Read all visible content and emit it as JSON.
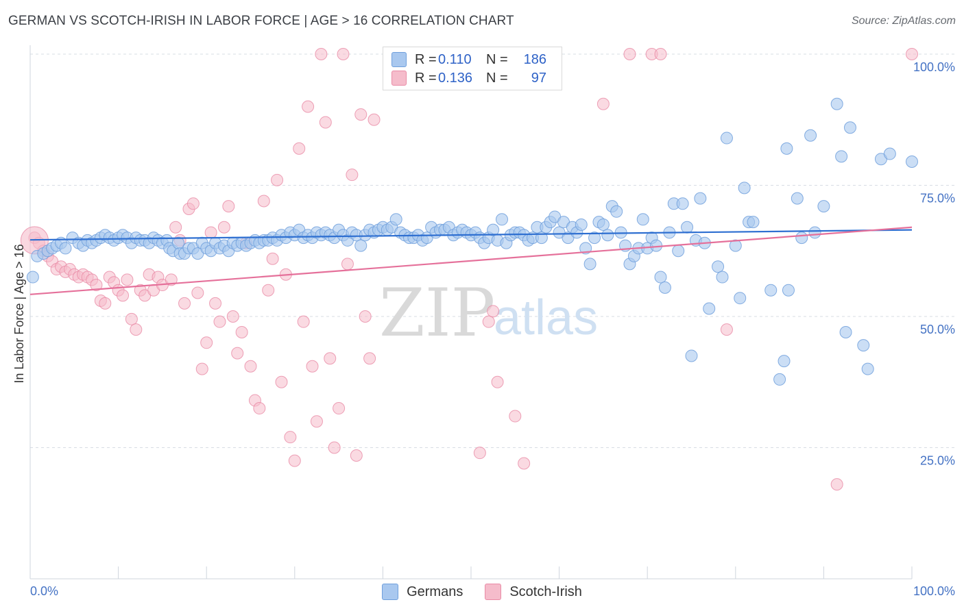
{
  "title": "GERMAN VS SCOTCH-IRISH IN LABOR FORCE | AGE > 16 CORRELATION CHART",
  "source": "Source: ZipAtlas.com",
  "watermark": {
    "part1": "ZIP",
    "part2": "atlas"
  },
  "colors": {
    "german_fill": "#a9c8ef",
    "german_stroke": "#6f9fdc",
    "german_line": "#2e6fd1",
    "scotch_fill": "#f5bccb",
    "scotch_stroke": "#e98aa5",
    "scotch_line": "#e5709a",
    "grid": "#d7dce3",
    "axis_label": "#4472c4"
  },
  "legend": {
    "german": {
      "r_label": "R =",
      "r_value": "0.110",
      "n_label": "N =",
      "n_value": "186"
    },
    "scotch": {
      "r_label": "R =",
      "r_value": "0.136",
      "n_label": "N =",
      "n_value": "97"
    }
  },
  "bottom_legend": {
    "german": "Germans",
    "scotch": "Scotch-Irish"
  },
  "chart_data": {
    "type": "scatter",
    "title": "GERMAN VS SCOTCH-IRISH IN LABOR FORCE | AGE > 16 CORRELATION CHART",
    "xlabel": "",
    "ylabel": "In Labor Force | Age > 16",
    "xlim": [
      0,
      100
    ],
    "ylim": [
      0,
      100
    ],
    "x_ticks_labeled": [
      "0.0%",
      "100.0%"
    ],
    "y_ticks": [
      25,
      50,
      75,
      100
    ],
    "y_tick_labels": [
      "25.0%",
      "50.0%",
      "75.0%",
      "100.0%"
    ],
    "grid": "horizontal dashed",
    "series": [
      {
        "name": "Germans",
        "trend": {
          "x": [
            0,
            100
          ],
          "y": [
            64.6,
            66.5
          ]
        },
        "points": [
          [
            0.3,
            57.5
          ],
          [
            0.8,
            61.5
          ],
          [
            1.5,
            62
          ],
          [
            2,
            62.5
          ],
          [
            2.5,
            63
          ],
          [
            3,
            63.5
          ],
          [
            3.5,
            64
          ],
          [
            4,
            63
          ],
          [
            4.8,
            65
          ],
          [
            5.5,
            64
          ],
          [
            6,
            63.5
          ],
          [
            6.5,
            64.5
          ],
          [
            7,
            64
          ],
          [
            7.5,
            64.5
          ],
          [
            8,
            65
          ],
          [
            8.5,
            65.5
          ],
          [
            9,
            65
          ],
          [
            9.5,
            64.5
          ],
          [
            10,
            65
          ],
          [
            10.5,
            65.5
          ],
          [
            11,
            65
          ],
          [
            11.5,
            64
          ],
          [
            12,
            65
          ],
          [
            12.5,
            64.5
          ],
          [
            13,
            64.5
          ],
          [
            13.5,
            64
          ],
          [
            14,
            65
          ],
          [
            14.5,
            64.5
          ],
          [
            15,
            64
          ],
          [
            15.5,
            64.5
          ],
          [
            15.8,
            63
          ],
          [
            16.2,
            62.5
          ],
          [
            16.8,
            64
          ],
          [
            17,
            62
          ],
          [
            17.5,
            62
          ],
          [
            18,
            63
          ],
          [
            18.5,
            63
          ],
          [
            19,
            62
          ],
          [
            19.5,
            64
          ],
          [
            20,
            63
          ],
          [
            20.5,
            62.5
          ],
          [
            21,
            64
          ],
          [
            21.5,
            63
          ],
          [
            22,
            63.5
          ],
          [
            22.5,
            62.5
          ],
          [
            23,
            64
          ],
          [
            23.5,
            63.5
          ],
          [
            24,
            64
          ],
          [
            24.5,
            63.5
          ],
          [
            25,
            64
          ],
          [
            25.5,
            64.5
          ],
          [
            26,
            64
          ],
          [
            26.5,
            64.5
          ],
          [
            27,
            64.5
          ],
          [
            27.5,
            65
          ],
          [
            28,
            64.5
          ],
          [
            28.5,
            65.5
          ],
          [
            29,
            65
          ],
          [
            29.5,
            66
          ],
          [
            30,
            65.5
          ],
          [
            30.5,
            66.5
          ],
          [
            31,
            65
          ],
          [
            31.5,
            65.5
          ],
          [
            32,
            65
          ],
          [
            32.5,
            66
          ],
          [
            33,
            65.5
          ],
          [
            33.5,
            66
          ],
          [
            34,
            65.5
          ],
          [
            34.5,
            65
          ],
          [
            35,
            66.5
          ],
          [
            35.5,
            65.5
          ],
          [
            36,
            64.5
          ],
          [
            36.5,
            66
          ],
          [
            37,
            65.5
          ],
          [
            37.5,
            63.5
          ],
          [
            38,
            65.5
          ],
          [
            38.5,
            66.5
          ],
          [
            39,
            66
          ],
          [
            39.5,
            66.5
          ],
          [
            40,
            67
          ],
          [
            40.5,
            66.5
          ],
          [
            41,
            67
          ],
          [
            41.5,
            68.5
          ],
          [
            42,
            66
          ],
          [
            42.5,
            65.5
          ],
          [
            43,
            65
          ],
          [
            43.5,
            65
          ],
          [
            44,
            65.5
          ],
          [
            44.5,
            64.5
          ],
          [
            45,
            65
          ],
          [
            45.5,
            67
          ],
          [
            46,
            66
          ],
          [
            46.5,
            66.5
          ],
          [
            47,
            66.5
          ],
          [
            47.5,
            67
          ],
          [
            48,
            65.5
          ],
          [
            48.5,
            66
          ],
          [
            49,
            66.5
          ],
          [
            49.5,
            66
          ],
          [
            50,
            65.5
          ],
          [
            50.5,
            66
          ],
          [
            51,
            65
          ],
          [
            51.5,
            64
          ],
          [
            52,
            65
          ],
          [
            52.5,
            66.5
          ],
          [
            53,
            64.5
          ],
          [
            53.5,
            68.5
          ],
          [
            54,
            64
          ],
          [
            54.5,
            65.5
          ],
          [
            55,
            66
          ],
          [
            55.5,
            66
          ],
          [
            56,
            65.5
          ],
          [
            56.5,
            64.5
          ],
          [
            57,
            65
          ],
          [
            57.5,
            67
          ],
          [
            58,
            65
          ],
          [
            58.5,
            67
          ],
          [
            59,
            68
          ],
          [
            59.5,
            69
          ],
          [
            60,
            66
          ],
          [
            60.5,
            68
          ],
          [
            61,
            65
          ],
          [
            61.5,
            67
          ],
          [
            62,
            66
          ],
          [
            62.5,
            67.5
          ],
          [
            63,
            63
          ],
          [
            63.5,
            60
          ],
          [
            64,
            65
          ],
          [
            64.5,
            68
          ],
          [
            65,
            67.5
          ],
          [
            65.5,
            65.5
          ],
          [
            66,
            71
          ],
          [
            66.5,
            70
          ],
          [
            67,
            66
          ],
          [
            67.5,
            63.5
          ],
          [
            68,
            60
          ],
          [
            68.5,
            61.5
          ],
          [
            69,
            63
          ],
          [
            69.5,
            68.5
          ],
          [
            70,
            63
          ],
          [
            70.5,
            65
          ],
          [
            71,
            63.5
          ],
          [
            71.5,
            57.5
          ],
          [
            72,
            55.5
          ],
          [
            72.5,
            66
          ],
          [
            73,
            71.5
          ],
          [
            73.5,
            62.5
          ],
          [
            74,
            71.5
          ],
          [
            74.5,
            67
          ],
          [
            75,
            42.5
          ],
          [
            75.5,
            64.5
          ],
          [
            76,
            72.5
          ],
          [
            76.5,
            64
          ],
          [
            77,
            51.5
          ],
          [
            78,
            59.5
          ],
          [
            78.5,
            57.5
          ],
          [
            79,
            84
          ],
          [
            80,
            63.5
          ],
          [
            80.5,
            53.5
          ],
          [
            81,
            74.5
          ],
          [
            81.5,
            68
          ],
          [
            82,
            68
          ],
          [
            84,
            55
          ],
          [
            85,
            38
          ],
          [
            85.5,
            41.5
          ],
          [
            85.8,
            82
          ],
          [
            86,
            55
          ],
          [
            87,
            72.5
          ],
          [
            87.5,
            65
          ],
          [
            88.5,
            84.5
          ],
          [
            89,
            66
          ],
          [
            90,
            71
          ],
          [
            91.5,
            90.5
          ],
          [
            92,
            80.5
          ],
          [
            92.5,
            47
          ],
          [
            93,
            86
          ],
          [
            94.5,
            44.5
          ],
          [
            95,
            40
          ],
          [
            96.5,
            80
          ],
          [
            97.5,
            81
          ],
          [
            100,
            79.5
          ]
        ]
      },
      {
        "name": "Scotch-Irish",
        "trend": {
          "x": [
            0,
            100
          ],
          "y": [
            54.2,
            67.0
          ]
        },
        "points": [
          [
            0.5,
            65
          ],
          [
            1,
            64
          ],
          [
            1.5,
            62.5
          ],
          [
            2,
            61.5
          ],
          [
            2.5,
            60.5
          ],
          [
            3,
            59
          ],
          [
            3.5,
            59.5
          ],
          [
            4,
            58.5
          ],
          [
            4.5,
            59
          ],
          [
            5,
            58
          ],
          [
            5.5,
            57.5
          ],
          [
            6,
            58
          ],
          [
            6.5,
            57.5
          ],
          [
            7,
            57
          ],
          [
            7.5,
            56
          ],
          [
            8,
            53
          ],
          [
            8.5,
            52.5
          ],
          [
            9,
            57.5
          ],
          [
            9.5,
            56.5
          ],
          [
            10,
            55
          ],
          [
            10.5,
            54
          ],
          [
            11,
            57
          ],
          [
            11.5,
            49.5
          ],
          [
            12,
            47.5
          ],
          [
            12.5,
            55
          ],
          [
            13,
            54
          ],
          [
            13.5,
            58
          ],
          [
            14,
            55
          ],
          [
            14.5,
            57.5
          ],
          [
            15,
            56
          ],
          [
            16,
            57
          ],
          [
            16.5,
            67
          ],
          [
            17,
            64.5
          ],
          [
            17.5,
            52.5
          ],
          [
            18,
            70.5
          ],
          [
            18.5,
            71.5
          ],
          [
            19,
            54.5
          ],
          [
            19.5,
            40
          ],
          [
            20,
            45
          ],
          [
            20.5,
            66
          ],
          [
            21,
            52.5
          ],
          [
            21.5,
            49
          ],
          [
            22,
            67
          ],
          [
            22.5,
            71
          ],
          [
            23,
            50
          ],
          [
            23.5,
            43
          ],
          [
            24,
            47
          ],
          [
            24.5,
            64
          ],
          [
            25,
            40.5
          ],
          [
            25.5,
            34
          ],
          [
            26,
            32.5
          ],
          [
            26.5,
            72
          ],
          [
            27,
            55
          ],
          [
            27.5,
            61
          ],
          [
            28,
            76
          ],
          [
            28.5,
            37.5
          ],
          [
            29,
            58
          ],
          [
            29.5,
            27
          ],
          [
            30,
            22.5
          ],
          [
            30.5,
            82
          ],
          [
            31,
            49
          ],
          [
            31.5,
            90
          ],
          [
            32,
            40.5
          ],
          [
            32.5,
            30
          ],
          [
            33,
            100
          ],
          [
            33.5,
            87
          ],
          [
            34,
            42
          ],
          [
            34.5,
            25
          ],
          [
            35,
            32.5
          ],
          [
            35.5,
            100
          ],
          [
            36,
            60
          ],
          [
            36.5,
            77
          ],
          [
            37,
            23.5
          ],
          [
            37.5,
            88.5
          ],
          [
            38,
            50
          ],
          [
            38.5,
            42
          ],
          [
            39,
            87.5
          ],
          [
            51,
            24
          ],
          [
            52,
            49
          ],
          [
            52.5,
            51
          ],
          [
            53,
            37.5
          ],
          [
            55,
            31
          ],
          [
            56,
            22
          ],
          [
            65,
            90.5
          ],
          [
            68,
            100
          ],
          [
            70.5,
            100
          ],
          [
            71.5,
            100
          ],
          [
            79,
            47.5
          ],
          [
            91.5,
            18
          ],
          [
            100,
            100
          ]
        ]
      }
    ]
  },
  "y_axis_label": "In Labor Force | Age > 16"
}
